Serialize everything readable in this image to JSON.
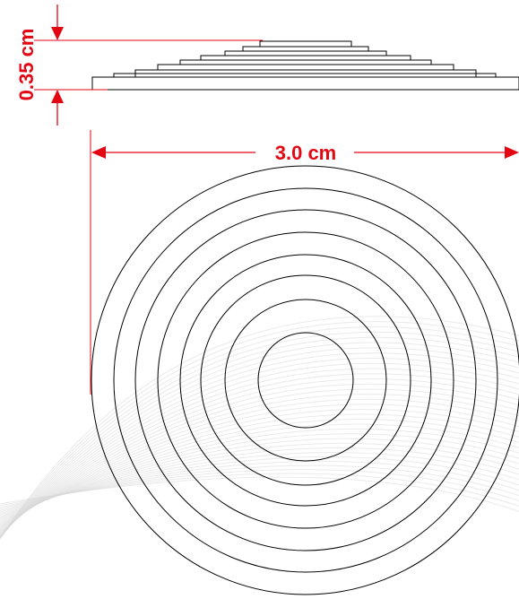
{
  "dimensions": {
    "height_label": "0.35 cm",
    "width_label": "3.0 cm"
  },
  "colors": {
    "dimension": "#e30613",
    "outline": "#000000",
    "watermark": "#d9d9d9",
    "background": "#ffffff"
  },
  "lens": {
    "ring_count": 8,
    "profile_steps": 8
  }
}
